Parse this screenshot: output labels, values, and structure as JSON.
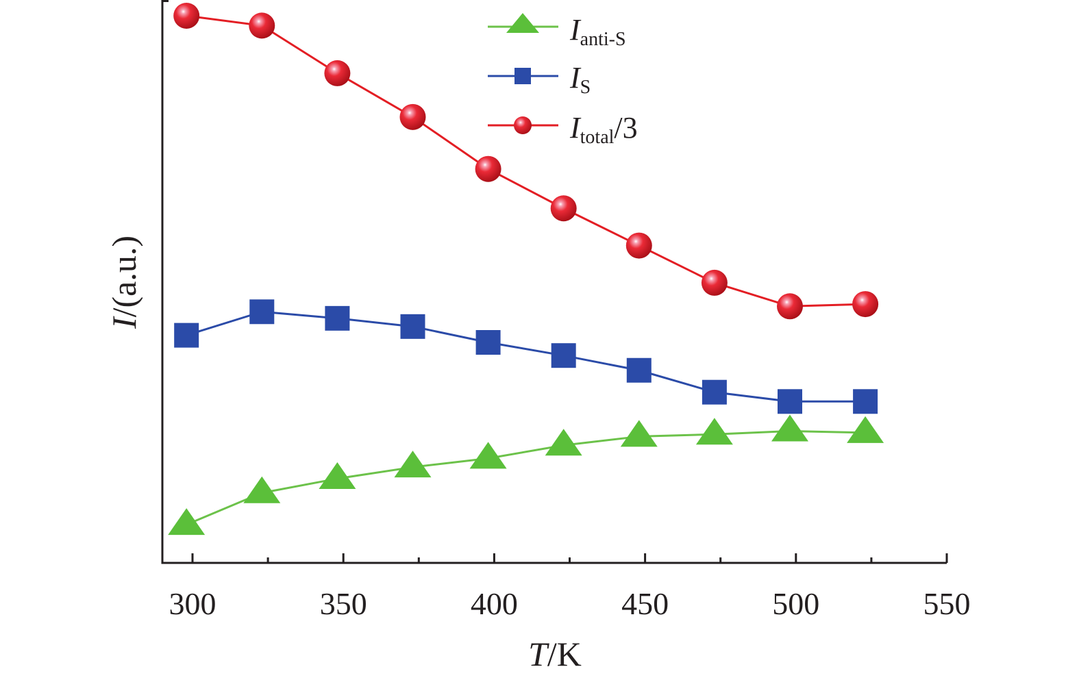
{
  "chart_data": {
    "type": "line",
    "title": "",
    "xlabel": {
      "var": "T",
      "unit": "/K"
    },
    "ylabel": {
      "var": "I",
      "unit": "/(a.u.)"
    },
    "xlim": [
      290,
      550
    ],
    "ylim": [
      0,
      100
    ],
    "y_ticks_labeled": false,
    "grid": false,
    "legend_position": "top-center",
    "x_ticks": [
      300,
      350,
      400,
      450,
      500,
      550
    ],
    "x": [
      298,
      323,
      348,
      373,
      398,
      423,
      448,
      473,
      498,
      523
    ],
    "series": [
      {
        "name": "I_anti-S",
        "label_main": "I",
        "label_sub": "anti-S",
        "label_suffix": "",
        "marker": "triangle",
        "color": "#5bbf3a",
        "line_color": "#6cc24a",
        "values": [
          7,
          12.8,
          15.4,
          17.5,
          19.1,
          21.5,
          23.1,
          23.5,
          24.1,
          23.8
        ]
      },
      {
        "name": "I_S",
        "label_main": "I",
        "label_sub": "S",
        "label_suffix": "",
        "marker": "square",
        "color": "#2b4ba8",
        "line_color": "#2b4ba8",
        "values": [
          41.6,
          45.9,
          44.7,
          43.2,
          40.3,
          37.9,
          35.2,
          31.2,
          29.5,
          29.5
        ]
      },
      {
        "name": "I_total/3",
        "label_main": "I",
        "label_sub": "total",
        "label_suffix": "/3",
        "marker": "circle",
        "color": "#e31e24",
        "line_color": "#e31e24",
        "values": [
          100,
          98.2,
          89.5,
          81.5,
          72,
          64.8,
          58,
          51.2,
          46.9,
          47.3
        ]
      }
    ]
  }
}
